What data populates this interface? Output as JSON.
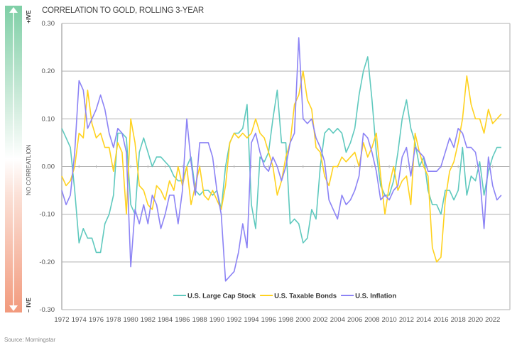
{
  "chart_data": {
    "type": "line",
    "title": "CORRELATION TO GOLD, ROLLING 3-YEAR",
    "xlabel": "",
    "ylabel": "",
    "ylim": [
      -0.3,
      0.3
    ],
    "xlim": [
      1972,
      2024
    ],
    "grid": true,
    "legend_position": "bottom-center",
    "y_ticks": [
      "0.30",
      "0.20",
      "0.10",
      "0.00",
      "-0.10",
      "-0.20",
      "-0.30"
    ],
    "y_tick_values": [
      0.3,
      0.2,
      0.1,
      0.0,
      -0.1,
      -0.2,
      -0.3
    ],
    "x_ticks": [
      "1972",
      "1974",
      "1976",
      "1978",
      "1980",
      "1982",
      "1984",
      "1986",
      "1988",
      "1990",
      "1992",
      "1994",
      "1996",
      "1998",
      "2000",
      "2002",
      "2004",
      "2006",
      "2008",
      "2010",
      "2012",
      "2014",
      "2016",
      "2018",
      "2020",
      "2022"
    ],
    "x_start": 1972,
    "x_step": 0.5,
    "series": [
      {
        "name": "U.S. Large Cap Stock",
        "color": "#5fc9be",
        "values": [
          0.08,
          0.06,
          0.04,
          -0.05,
          -0.16,
          -0.13,
          -0.15,
          -0.15,
          -0.18,
          -0.18,
          -0.12,
          -0.1,
          -0.06,
          0.07,
          0.07,
          0.06,
          -0.08,
          -0.1,
          0.03,
          0.06,
          0.03,
          0.0,
          0.02,
          0.02,
          0.01,
          0.0,
          -0.02,
          -0.03,
          -0.03,
          0.0,
          0.02,
          -0.05,
          -0.06,
          -0.05,
          -0.05,
          -0.06,
          -0.05,
          -0.09,
          0.0,
          0.05,
          0.07,
          0.07,
          0.08,
          0.13,
          -0.08,
          -0.13,
          0.02,
          0.01,
          0.03,
          0.1,
          0.16,
          0.05,
          0.05,
          -0.12,
          -0.11,
          -0.12,
          -0.16,
          -0.15,
          -0.09,
          -0.11,
          0.0,
          0.07,
          0.08,
          0.07,
          0.08,
          0.07,
          0.03,
          0.05,
          0.08,
          0.15,
          0.2,
          0.23,
          0.14,
          0.03,
          -0.04,
          -0.06,
          -0.06,
          -0.03,
          0.03,
          0.1,
          0.14,
          0.08,
          0.05,
          0.0,
          0.02,
          -0.05,
          -0.08,
          -0.08,
          -0.1,
          -0.05,
          -0.05,
          -0.07,
          -0.05,
          0.04,
          -0.06,
          -0.02,
          -0.03,
          0.01,
          -0.06,
          -0.01,
          0.02,
          0.04,
          0.04
        ]
      },
      {
        "name": "U.S. Taxable Bonds",
        "color": "#ffd21f",
        "values": [
          -0.02,
          -0.04,
          -0.03,
          0.0,
          0.07,
          0.06,
          0.16,
          0.09,
          0.06,
          0.07,
          0.04,
          0.04,
          -0.01,
          0.05,
          0.03,
          -0.1,
          0.1,
          0.05,
          -0.04,
          -0.05,
          -0.08,
          -0.09,
          -0.04,
          -0.05,
          -0.07,
          -0.03,
          -0.05,
          0.0,
          -0.04,
          0.0,
          -0.08,
          -0.04,
          0.0,
          -0.06,
          -0.07,
          -0.05,
          -0.07,
          -0.09,
          -0.04,
          0.05,
          0.07,
          0.06,
          0.07,
          0.06,
          0.07,
          0.1,
          0.07,
          0.06,
          0.03,
          0.0,
          -0.06,
          -0.03,
          0.02,
          0.05,
          0.13,
          0.15,
          0.2,
          0.14,
          0.12,
          0.04,
          0.03,
          -0.02,
          -0.04,
          0.0,
          0.0,
          0.02,
          0.01,
          0.02,
          0.03,
          0.0,
          0.05,
          0.02,
          0.04,
          0.07,
          -0.02,
          -0.1,
          -0.04,
          0.0,
          -0.05,
          -0.03,
          -0.02,
          -0.08,
          0.07,
          0.03,
          0.0,
          -0.02,
          -0.17,
          -0.2,
          -0.19,
          -0.07,
          -0.01,
          0.01,
          0.05,
          0.1,
          0.19,
          0.13,
          0.1,
          0.1,
          0.07,
          0.12,
          0.09,
          0.1,
          0.11
        ]
      },
      {
        "name": "U.S. Inflation",
        "color": "#8c83f5",
        "values": [
          -0.05,
          -0.08,
          -0.06,
          0.03,
          0.18,
          0.16,
          0.08,
          0.1,
          0.12,
          0.15,
          0.12,
          0.07,
          0.04,
          0.08,
          0.07,
          0.03,
          -0.21,
          -0.09,
          -0.12,
          -0.08,
          -0.12,
          -0.06,
          -0.08,
          -0.13,
          -0.1,
          -0.06,
          -0.06,
          -0.12,
          -0.05,
          0.1,
          0.01,
          -0.06,
          0.05,
          0.05,
          0.05,
          0.02,
          -0.05,
          -0.1,
          -0.24,
          -0.23,
          -0.22,
          -0.18,
          -0.12,
          -0.17,
          0.05,
          0.07,
          0.03,
          0.0,
          -0.01,
          0.02,
          0.0,
          -0.03,
          0.0,
          0.05,
          0.07,
          0.27,
          0.1,
          0.09,
          0.1,
          0.06,
          0.04,
          0.01,
          -0.07,
          -0.09,
          -0.11,
          -0.06,
          -0.08,
          -0.07,
          -0.05,
          -0.02,
          0.07,
          0.06,
          0.03,
          -0.01,
          -0.07,
          -0.06,
          -0.07,
          -0.05,
          -0.04,
          0.02,
          0.04,
          -0.02,
          0.04,
          0.03,
          0.02,
          -0.01,
          -0.01,
          -0.01,
          0.0,
          0.03,
          0.06,
          0.04,
          0.08,
          0.07,
          0.04,
          0.04,
          0.03,
          -0.02,
          -0.13,
          0.02,
          -0.04,
          -0.07,
          -0.06
        ]
      }
    ]
  },
  "side_scale": {
    "positive": "+IVE",
    "negative": "– IVE",
    "middle": "NO CORREATLION"
  },
  "source": "Source: Morningstar"
}
